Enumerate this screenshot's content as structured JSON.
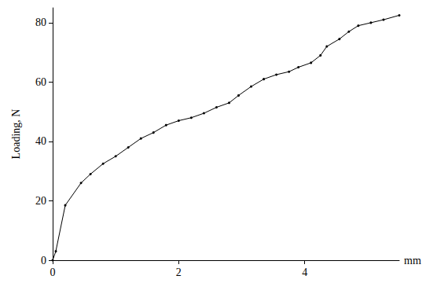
{
  "chart_data": {
    "type": "line",
    "y_label": "Loading, N",
    "x_label": "mm",
    "x": [
      0,
      0.05,
      0.2,
      0.45,
      0.6,
      0.8,
      1.0,
      1.2,
      1.4,
      1.6,
      1.8,
      2.0,
      2.2,
      2.4,
      2.6,
      2.8,
      2.95,
      3.15,
      3.35,
      3.55,
      3.75,
      3.9,
      4.1,
      4.25,
      4.35,
      4.55,
      4.7,
      4.85,
      5.05,
      5.25,
      5.5
    ],
    "values": [
      0,
      3,
      18.5,
      26,
      29,
      32.5,
      35,
      38,
      41,
      43,
      45.5,
      47,
      48,
      49.5,
      51.5,
      53,
      55.5,
      58.5,
      61,
      62.5,
      63.5,
      65,
      66.5,
      69,
      72,
      74.5,
      77,
      79,
      80,
      81,
      82.5
    ],
    "color": "#000000",
    "marker": "circle",
    "xlim": [
      0,
      5.5
    ],
    "xticks": [
      0,
      2,
      4
    ],
    "ylim": [
      0,
      85
    ],
    "yticks": [
      0,
      20,
      40,
      60,
      80
    ],
    "grid": false
  }
}
